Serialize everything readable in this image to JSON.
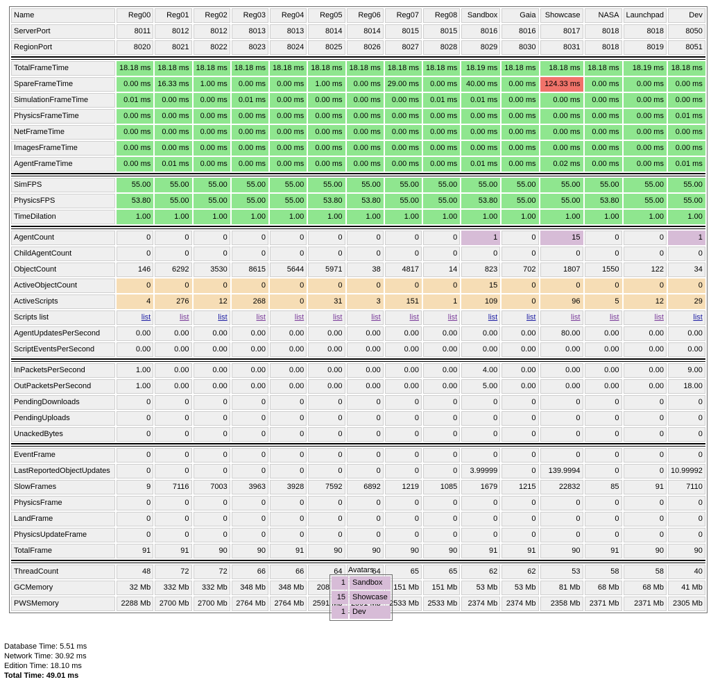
{
  "stats_table": {
    "header": [
      "Name",
      "Reg00",
      "Reg01",
      "Reg02",
      "Reg03",
      "Reg04",
      "Reg05",
      "Reg06",
      "Reg07",
      "Reg08",
      "Sandbox",
      "Gaia",
      "Showcase",
      "NASA",
      "Launchpad",
      "Dev"
    ],
    "colors": {
      "green": "#8fe68f",
      "red": "#f0736a",
      "orange": "#f6ddb5",
      "purple": "#d7bcd7",
      "plain": "#efefef",
      "link": "#1d1da3",
      "link_visited": "#7a3b9a"
    },
    "groups": [
      [
        {
          "label": "ServerPort",
          "values": [
            "8011",
            "8012",
            "8012",
            "8013",
            "8013",
            "8014",
            "8014",
            "8015",
            "8015",
            "8016",
            "8016",
            "8017",
            "8018",
            "8018",
            "8050"
          ]
        },
        {
          "label": "RegionPort",
          "values": [
            "8020",
            "8021",
            "8022",
            "8023",
            "8024",
            "8025",
            "8026",
            "8027",
            "8028",
            "8029",
            "8030",
            "8031",
            "8018",
            "8019",
            "8051"
          ]
        }
      ],
      [
        {
          "label": "TotalFrameTime",
          "color": "green",
          "values": [
            "18.18 ms",
            "18.18 ms",
            "18.18 ms",
            "18.18 ms",
            "18.18 ms",
            "18.18 ms",
            "18.18 ms",
            "18.18 ms",
            "18.18 ms",
            "18.19 ms",
            "18.18 ms",
            "18.18 ms",
            "18.18 ms",
            "18.19 ms",
            "18.18 ms"
          ]
        },
        {
          "label": "SpareFrameTime",
          "color": "green",
          "cell_colors": {
            "11": "red"
          },
          "values": [
            "0.00 ms",
            "16.33 ms",
            "1.00 ms",
            "0.00 ms",
            "0.00 ms",
            "1.00 ms",
            "0.00 ms",
            "29.00 ms",
            "0.00 ms",
            "40.00 ms",
            "0.00 ms",
            "124.33 ms",
            "0.00 ms",
            "0.00 ms",
            "0.00 ms"
          ]
        },
        {
          "label": "SimulationFrameTime",
          "color": "green",
          "values": [
            "0.01 ms",
            "0.00 ms",
            "0.00 ms",
            "0.01 ms",
            "0.00 ms",
            "0.00 ms",
            "0.00 ms",
            "0.00 ms",
            "0.01 ms",
            "0.01 ms",
            "0.00 ms",
            "0.00 ms",
            "0.00 ms",
            "0.00 ms",
            "0.00 ms"
          ]
        },
        {
          "label": "PhysicsFrameTime",
          "color": "green",
          "values": [
            "0.00 ms",
            "0.00 ms",
            "0.00 ms",
            "0.00 ms",
            "0.00 ms",
            "0.00 ms",
            "0.00 ms",
            "0.00 ms",
            "0.00 ms",
            "0.00 ms",
            "0.00 ms",
            "0.00 ms",
            "0.00 ms",
            "0.00 ms",
            "0.01 ms"
          ]
        },
        {
          "label": "NetFrameTime",
          "color": "green",
          "values": [
            "0.00 ms",
            "0.00 ms",
            "0.00 ms",
            "0.00 ms",
            "0.00 ms",
            "0.00 ms",
            "0.00 ms",
            "0.00 ms",
            "0.00 ms",
            "0.00 ms",
            "0.00 ms",
            "0.00 ms",
            "0.00 ms",
            "0.00 ms",
            "0.00 ms"
          ]
        },
        {
          "label": "ImagesFrameTime",
          "color": "green",
          "values": [
            "0.00 ms",
            "0.00 ms",
            "0.00 ms",
            "0.00 ms",
            "0.00 ms",
            "0.00 ms",
            "0.00 ms",
            "0.00 ms",
            "0.00 ms",
            "0.00 ms",
            "0.00 ms",
            "0.00 ms",
            "0.00 ms",
            "0.00 ms",
            "0.00 ms"
          ]
        },
        {
          "label": "AgentFrameTime",
          "color": "green",
          "values": [
            "0.00 ms",
            "0.01 ms",
            "0.00 ms",
            "0.00 ms",
            "0.00 ms",
            "0.00 ms",
            "0.00 ms",
            "0.00 ms",
            "0.00 ms",
            "0.01 ms",
            "0.00 ms",
            "0.02 ms",
            "0.00 ms",
            "0.00 ms",
            "0.01 ms"
          ]
        }
      ],
      [
        {
          "label": "SimFPS",
          "color": "green",
          "values": [
            "55.00",
            "55.00",
            "55.00",
            "55.00",
            "55.00",
            "55.00",
            "55.00",
            "55.00",
            "55.00",
            "55.00",
            "55.00",
            "55.00",
            "55.00",
            "55.00",
            "55.00"
          ]
        },
        {
          "label": "PhysicsFPS",
          "color": "green",
          "values": [
            "53.80",
            "55.00",
            "55.00",
            "55.00",
            "55.00",
            "53.80",
            "53.80",
            "55.00",
            "55.00",
            "53.80",
            "55.00",
            "55.00",
            "53.80",
            "55.00",
            "55.00"
          ]
        },
        {
          "label": "TimeDilation",
          "color": "green",
          "values": [
            "1.00",
            "1.00",
            "1.00",
            "1.00",
            "1.00",
            "1.00",
            "1.00",
            "1.00",
            "1.00",
            "1.00",
            "1.00",
            "1.00",
            "1.00",
            "1.00",
            "1.00"
          ]
        }
      ],
      [
        {
          "label": "AgentCount",
          "cell_colors": {
            "9": "purple",
            "11": "purple",
            "14": "purple"
          },
          "values": [
            "0",
            "0",
            "0",
            "0",
            "0",
            "0",
            "0",
            "0",
            "0",
            "1",
            "0",
            "15",
            "0",
            "0",
            "1"
          ]
        },
        {
          "label": "ChildAgentCount",
          "values": [
            "0",
            "0",
            "0",
            "0",
            "0",
            "0",
            "0",
            "0",
            "0",
            "0",
            "0",
            "0",
            "0",
            "0",
            "0"
          ]
        },
        {
          "label": "ObjectCount",
          "values": [
            "146",
            "6292",
            "3530",
            "8615",
            "5644",
            "5971",
            "38",
            "4817",
            "14",
            "823",
            "702",
            "1807",
            "1550",
            "122",
            "34"
          ]
        },
        {
          "label": "ActiveObjectCount",
          "color": "orange",
          "values": [
            "0",
            "0",
            "0",
            "0",
            "0",
            "0",
            "0",
            "0",
            "0",
            "15",
            "0",
            "0",
            "0",
            "0",
            "0"
          ]
        },
        {
          "label": "ActiveScripts",
          "color": "orange",
          "values": [
            "4",
            "276",
            "12",
            "268",
            "0",
            "31",
            "3",
            "151",
            "1",
            "109",
            "0",
            "96",
            "5",
            "12",
            "29"
          ]
        },
        {
          "label": "Scripts list",
          "link": true,
          "visited": [
            1,
            3,
            4,
            5,
            6,
            7,
            8,
            11,
            12,
            13
          ],
          "values": [
            "list",
            "list",
            "list",
            "list",
            "list",
            "list",
            "list",
            "list",
            "list",
            "list",
            "list",
            "list",
            "list",
            "list",
            "list"
          ]
        },
        {
          "label": "AgentUpdatesPerSecond",
          "values": [
            "0.00",
            "0.00",
            "0.00",
            "0.00",
            "0.00",
            "0.00",
            "0.00",
            "0.00",
            "0.00",
            "0.00",
            "0.00",
            "80.00",
            "0.00",
            "0.00",
            "0.00"
          ]
        },
        {
          "label": "ScriptEventsPerSecond",
          "values": [
            "0.00",
            "0.00",
            "0.00",
            "0.00",
            "0.00",
            "0.00",
            "0.00",
            "0.00",
            "0.00",
            "0.00",
            "0.00",
            "0.00",
            "0.00",
            "0.00",
            "0.00"
          ]
        }
      ],
      [
        {
          "label": "InPacketsPerSecond",
          "values": [
            "1.00",
            "0.00",
            "0.00",
            "0.00",
            "0.00",
            "0.00",
            "0.00",
            "0.00",
            "0.00",
            "4.00",
            "0.00",
            "0.00",
            "0.00",
            "0.00",
            "9.00"
          ]
        },
        {
          "label": "OutPacketsPerSecond",
          "values": [
            "1.00",
            "0.00",
            "0.00",
            "0.00",
            "0.00",
            "0.00",
            "0.00",
            "0.00",
            "0.00",
            "5.00",
            "0.00",
            "0.00",
            "0.00",
            "0.00",
            "18.00"
          ]
        },
        {
          "label": "PendingDownloads",
          "values": [
            "0",
            "0",
            "0",
            "0",
            "0",
            "0",
            "0",
            "0",
            "0",
            "0",
            "0",
            "0",
            "0",
            "0",
            "0"
          ]
        },
        {
          "label": "PendingUploads",
          "values": [
            "0",
            "0",
            "0",
            "0",
            "0",
            "0",
            "0",
            "0",
            "0",
            "0",
            "0",
            "0",
            "0",
            "0",
            "0"
          ]
        },
        {
          "label": "UnackedBytes",
          "values": [
            "0",
            "0",
            "0",
            "0",
            "0",
            "0",
            "0",
            "0",
            "0",
            "0",
            "0",
            "0",
            "0",
            "0",
            "0"
          ]
        }
      ],
      [
        {
          "label": "EventFrame",
          "values": [
            "0",
            "0",
            "0",
            "0",
            "0",
            "0",
            "0",
            "0",
            "0",
            "0",
            "0",
            "0",
            "0",
            "0",
            "0"
          ]
        },
        {
          "label": "LastReportedObjectUpdates",
          "values": [
            "0",
            "0",
            "0",
            "0",
            "0",
            "0",
            "0",
            "0",
            "0",
            "3.99999",
            "0",
            "139.9994",
            "0",
            "0",
            "10.99992"
          ]
        },
        {
          "label": "SlowFrames",
          "values": [
            "9",
            "7116",
            "7003",
            "3963",
            "3928",
            "7592",
            "6892",
            "1219",
            "1085",
            "1679",
            "1215",
            "22832",
            "85",
            "91",
            "7110"
          ]
        },
        {
          "label": "PhysicsFrame",
          "values": [
            "0",
            "0",
            "0",
            "0",
            "0",
            "0",
            "0",
            "0",
            "0",
            "0",
            "0",
            "0",
            "0",
            "0",
            "0"
          ]
        },
        {
          "label": "LandFrame",
          "values": [
            "0",
            "0",
            "0",
            "0",
            "0",
            "0",
            "0",
            "0",
            "0",
            "0",
            "0",
            "0",
            "0",
            "0",
            "0"
          ]
        },
        {
          "label": "PhysicsUpdateFrame",
          "values": [
            "0",
            "0",
            "0",
            "0",
            "0",
            "0",
            "0",
            "0",
            "0",
            "0",
            "0",
            "0",
            "0",
            "0",
            "0"
          ]
        },
        {
          "label": "TotalFrame",
          "values": [
            "91",
            "91",
            "90",
            "90",
            "91",
            "90",
            "90",
            "90",
            "90",
            "91",
            "91",
            "90",
            "91",
            "90",
            "90"
          ]
        }
      ],
      [
        {
          "label": "ThreadCount",
          "values": [
            "48",
            "72",
            "72",
            "66",
            "66",
            "64",
            "64",
            "65",
            "65",
            "62",
            "62",
            "53",
            "58",
            "58",
            "40"
          ]
        },
        {
          "label": "GCMemory",
          "values": [
            "32 Mb",
            "332 Mb",
            "332 Mb",
            "348 Mb",
            "348 Mb",
            "208 Mb",
            "208 Mb",
            "151 Mb",
            "151 Mb",
            "53 Mb",
            "53 Mb",
            "81 Mb",
            "68 Mb",
            "68 Mb",
            "41 Mb"
          ]
        },
        {
          "label": "PWSMemory",
          "values": [
            "2288 Mb",
            "2700 Mb",
            "2700 Mb",
            "2764 Mb",
            "2764 Mb",
            "2591 Mb",
            "2591 Mb",
            "2533 Mb",
            "2533 Mb",
            "2374 Mb",
            "2374 Mb",
            "2358 Mb",
            "2371 Mb",
            "2371 Mb",
            "2305 Mb"
          ]
        }
      ]
    ]
  },
  "avatars": {
    "caption": "Avatars",
    "rows": [
      {
        "count": "1",
        "region": "Sandbox"
      },
      {
        "count": "15",
        "region": "Showcase"
      },
      {
        "count": "1",
        "region": "Dev"
      }
    ]
  },
  "timings": {
    "database": "Database Time: 5.51 ms",
    "network": "Network Time: 30.92 ms",
    "edition": "Edition Time: 18.10 ms",
    "total": "Total Time: 49.01 ms"
  }
}
